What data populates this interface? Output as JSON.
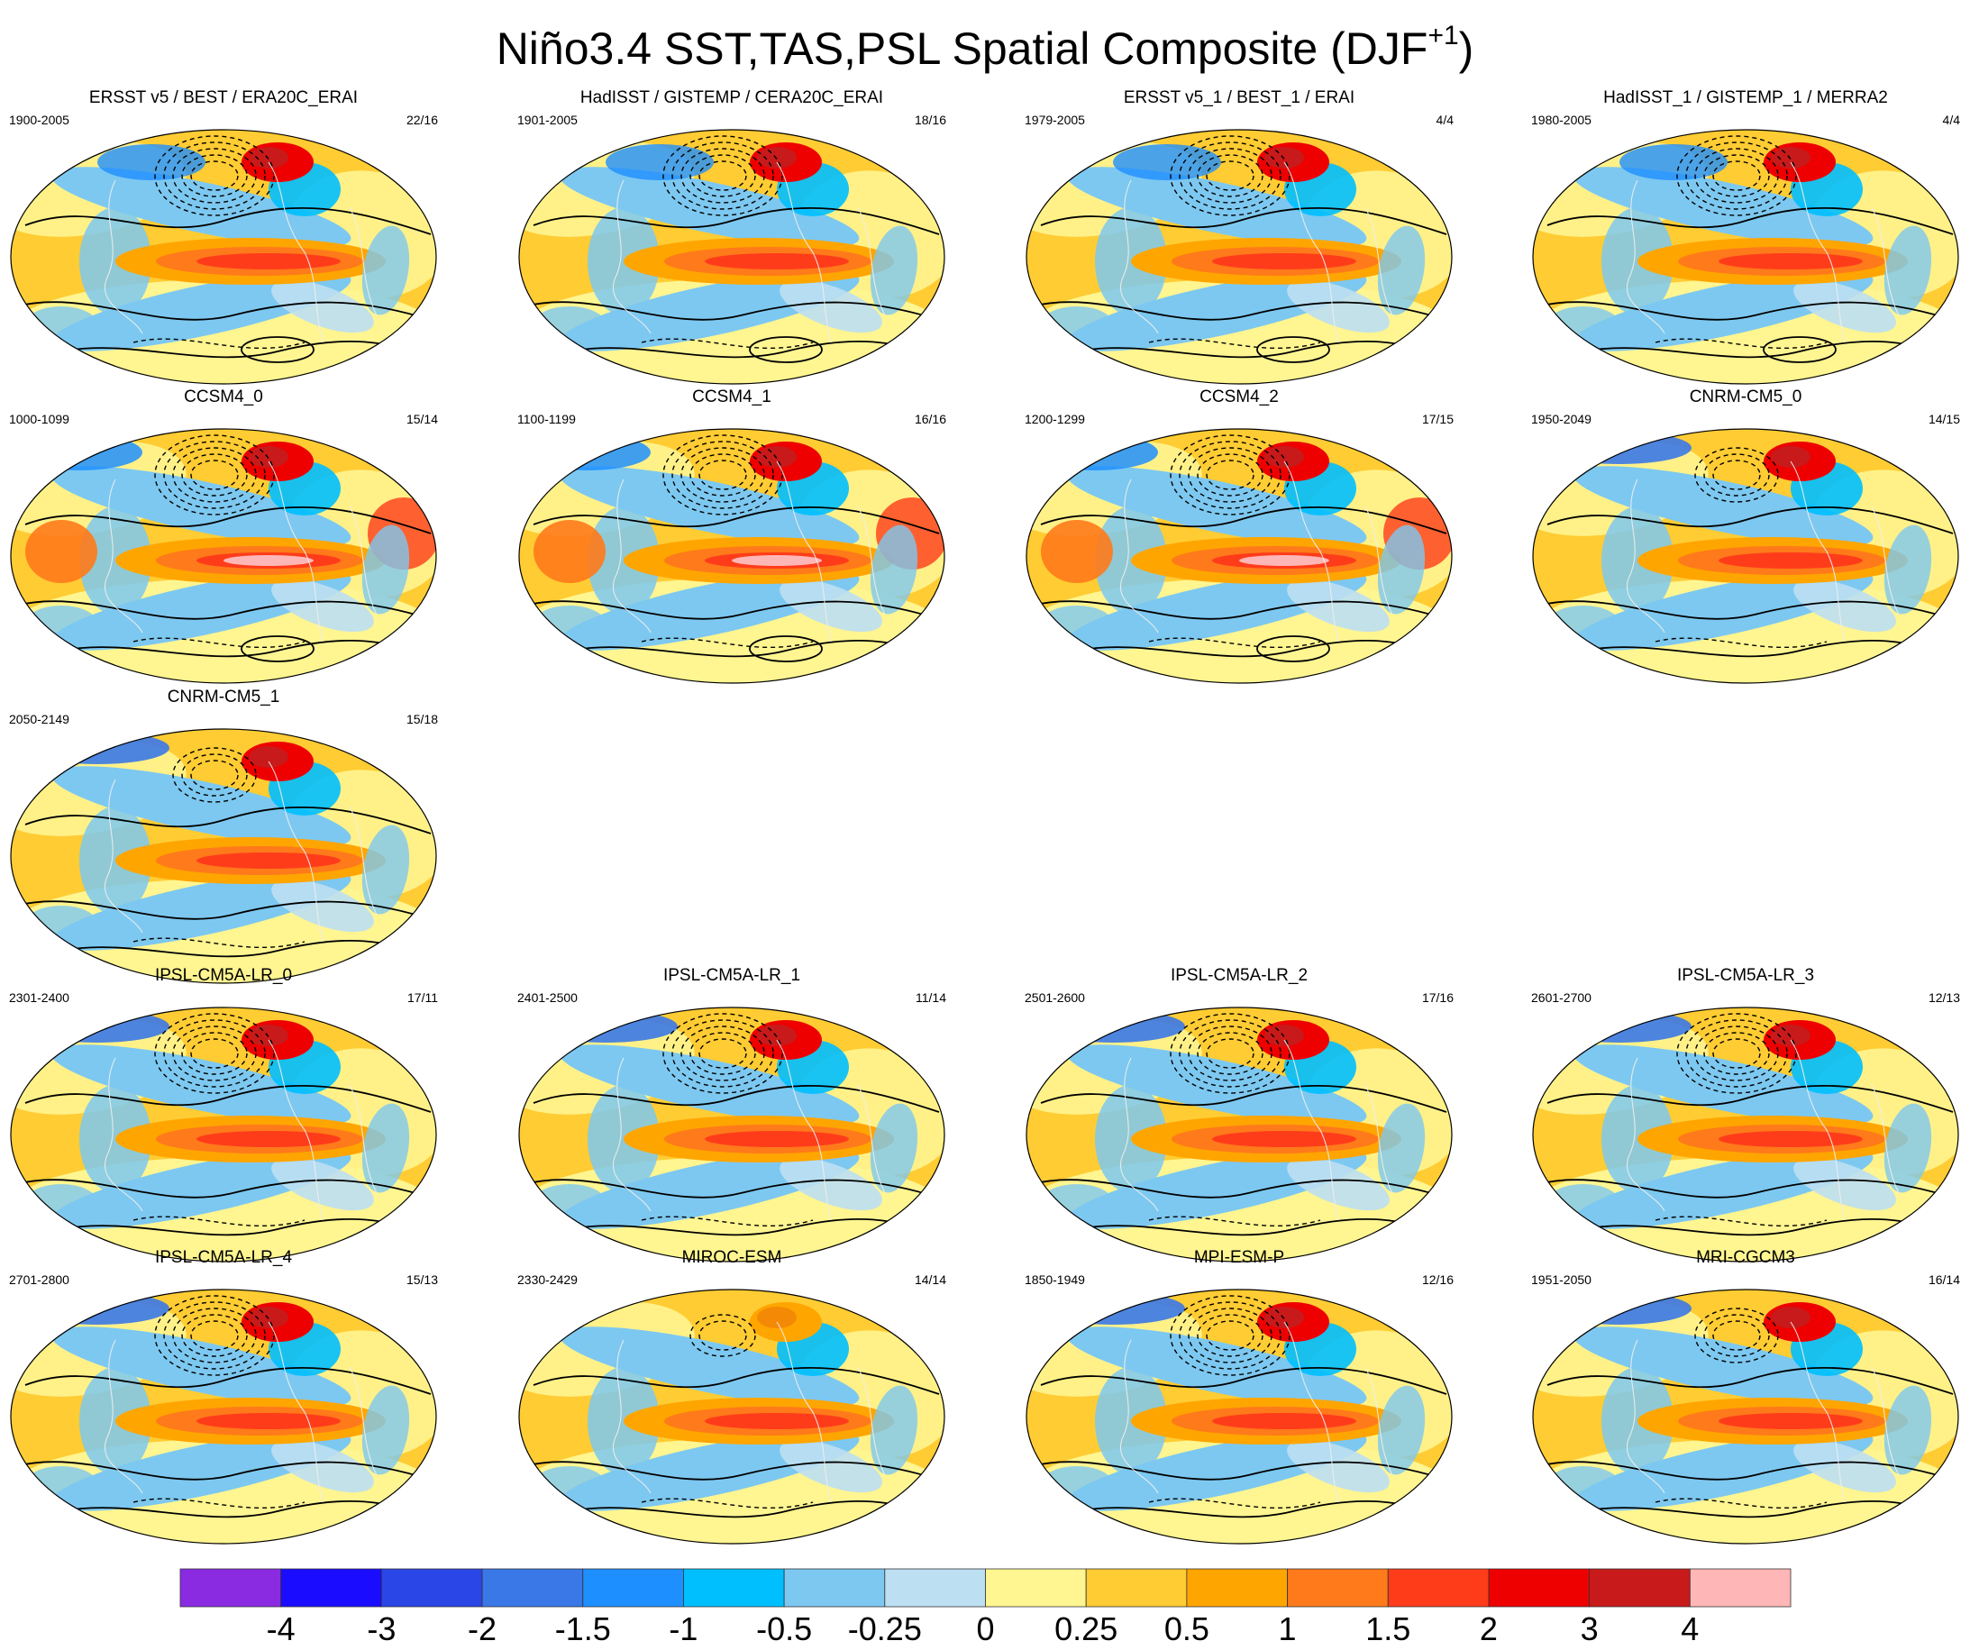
{
  "title": "Niño3.4 SST,TAS,PSL Spatial Composite (DJF",
  "title_sup": "+1",
  "title_close": ")",
  "colorbar": {
    "colors": [
      "#8a2be2",
      "#1a0dff",
      "#2a46e6",
      "#3a78e8",
      "#1e8fff",
      "#00bfff",
      "#7dc8f0",
      "#bcdff2",
      "#fff591",
      "#ffcc33",
      "#ffa500",
      "#ff7a1a",
      "#ff3c1a",
      "#ee0000",
      "#c81a1a",
      "#ffb6b6"
    ],
    "labels": [
      "-4",
      "-3",
      "-2",
      "-1.5",
      "-1",
      "-0.5",
      "-0.25",
      "0",
      "0.25",
      "0.5",
      "1",
      "1.5",
      "2",
      "3",
      "4"
    ]
  },
  "chart_data": {
    "type": "heatmap",
    "projection": "global map panels, 4 columns",
    "variables": [
      "SST",
      "TAS",
      "PSL"
    ],
    "season": "DJF+1",
    "contour_styles": {
      "positive": "solid",
      "negative": "dashed"
    },
    "panels": [
      {
        "title": "ERSST v5 / BEST / ERA20C_ERAI",
        "years": "1900-2005",
        "count": "22/16",
        "style": "obs"
      },
      {
        "title": "HadISST / GISTEMP / CERA20C_ERAI",
        "years": "1901-2005",
        "count": "18/16",
        "style": "obs"
      },
      {
        "title": "ERSST v5_1 / BEST_1 / ERAI",
        "years": "1979-2005",
        "count": "4/4",
        "style": "obs"
      },
      {
        "title": "HadISST_1 / GISTEMP_1 / MERRA2",
        "years": "1980-2005",
        "count": "4/4",
        "style": "obs"
      },
      {
        "title": "CCSM4_0",
        "years": "1000-1099",
        "count": "15/14",
        "style": "ccsm"
      },
      {
        "title": "CCSM4_1",
        "years": "1100-1199",
        "count": "16/16",
        "style": "ccsm"
      },
      {
        "title": "CCSM4_2",
        "years": "1200-1299",
        "count": "17/15",
        "style": "ccsm"
      },
      {
        "title": "CNRM-CM5_0",
        "years": "1950-2049",
        "count": "14/15",
        "style": "cnrm"
      },
      {
        "title": "CNRM-CM5_1",
        "years": "2050-2149",
        "count": "15/18",
        "style": "cnrm"
      },
      {
        "title": "IPSL-CM5A-LR_0",
        "years": "2301-2400",
        "count": "17/11",
        "style": "ipsl"
      },
      {
        "title": "IPSL-CM5A-LR_1",
        "years": "2401-2500",
        "count": "11/14",
        "style": "ipsl"
      },
      {
        "title": "IPSL-CM5A-LR_2",
        "years": "2501-2600",
        "count": "17/16",
        "style": "ipsl"
      },
      {
        "title": "IPSL-CM5A-LR_3",
        "years": "2601-2700",
        "count": "12/13",
        "style": "ipsl"
      },
      {
        "title": "IPSL-CM5A-LR_4",
        "years": "2701-2800",
        "count": "15/13",
        "style": "ipsl"
      },
      {
        "title": "MIROC-ESM",
        "years": "2330-2429",
        "count": "14/14",
        "style": "weak"
      },
      {
        "title": "MPI-ESM-P",
        "years": "1850-1949",
        "count": "12/16",
        "style": "ipsl"
      },
      {
        "title": "MRI-CGCM3",
        "years": "1951-2050",
        "count": "16/14",
        "style": "cnrm"
      }
    ],
    "colorbar_levels": [
      -4,
      -3,
      -2,
      -1.5,
      -1,
      -0.5,
      -0.25,
      0,
      0.25,
      0.5,
      1,
      1.5,
      2,
      3,
      4
    ]
  }
}
